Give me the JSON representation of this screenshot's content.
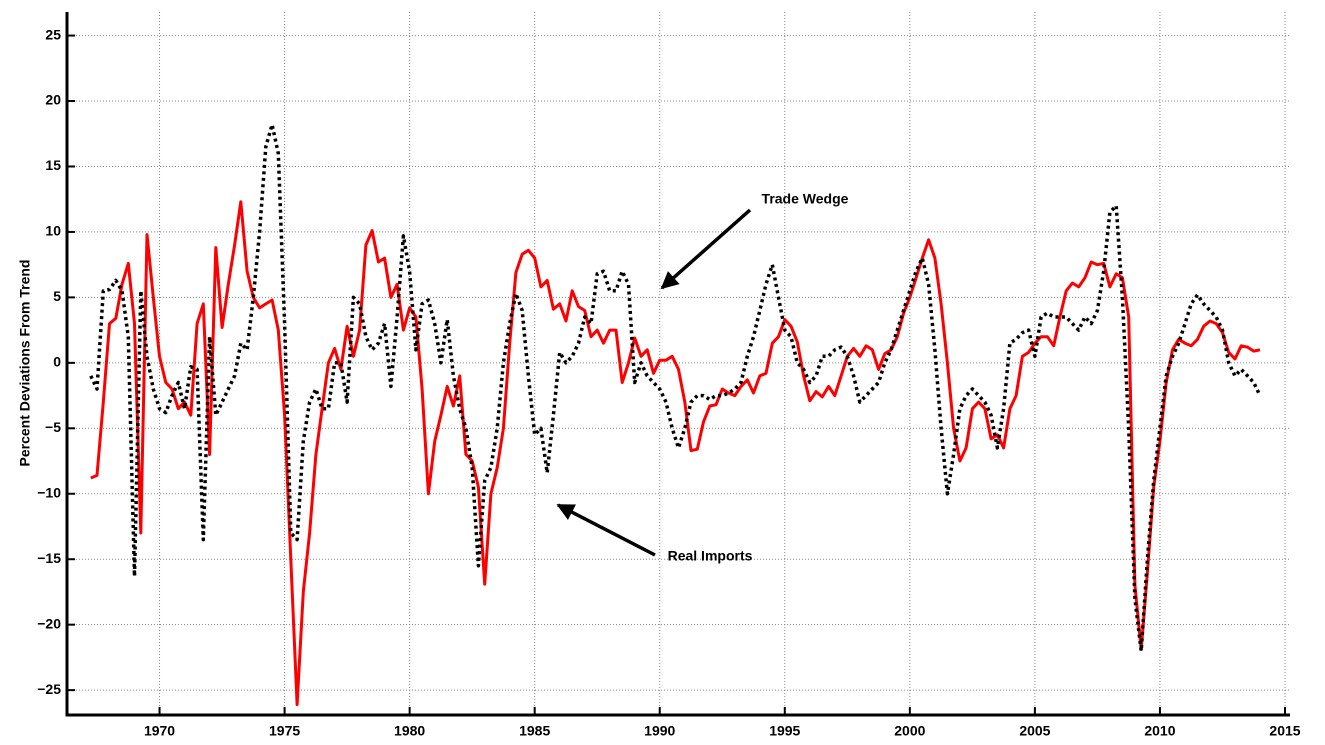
{
  "chart_data": {
    "type": "line",
    "ylabel": "Percent Deviations From Trend",
    "x": [
      1967.25,
      1967.5,
      1967.75,
      1968,
      1968.25,
      1968.5,
      1968.75,
      1969,
      1969.25,
      1969.5,
      1969.75,
      1970,
      1970.25,
      1970.5,
      1970.75,
      1971,
      1971.25,
      1971.5,
      1971.75,
      1972,
      1972.25,
      1972.5,
      1972.75,
      1973,
      1973.25,
      1973.5,
      1973.75,
      1974,
      1974.25,
      1974.5,
      1974.75,
      1975,
      1975.25,
      1975.5,
      1975.75,
      1976,
      1976.25,
      1976.5,
      1976.75,
      1977,
      1977.25,
      1977.5,
      1977.75,
      1978,
      1978.25,
      1978.5,
      1978.75,
      1979,
      1979.25,
      1979.5,
      1979.75,
      1980,
      1980.25,
      1980.5,
      1980.75,
      1981,
      1981.25,
      1981.5,
      1981.75,
      1982,
      1982.25,
      1982.5,
      1982.75,
      1983,
      1983.25,
      1983.5,
      1983.75,
      1984,
      1984.25,
      1984.5,
      1984.75,
      1985,
      1985.25,
      1985.5,
      1985.75,
      1986,
      1986.25,
      1986.5,
      1986.75,
      1987,
      1987.25,
      1987.5,
      1987.75,
      1988,
      1988.25,
      1988.5,
      1988.75,
      1989,
      1989.25,
      1989.5,
      1989.75,
      1990,
      1990.25,
      1990.5,
      1990.75,
      1991,
      1991.25,
      1991.5,
      1991.75,
      1992,
      1992.25,
      1992.5,
      1992.75,
      1993,
      1993.25,
      1993.5,
      1993.75,
      1994,
      1994.25,
      1994.5,
      1994.75,
      1995,
      1995.25,
      1995.5,
      1995.75,
      1996,
      1996.25,
      1996.5,
      1996.75,
      1997,
      1997.25,
      1997.5,
      1997.75,
      1998,
      1998.25,
      1998.5,
      1998.75,
      1999,
      1999.25,
      1999.5,
      1999.75,
      2000,
      2000.25,
      2000.5,
      2000.75,
      2001,
      2001.25,
      2001.5,
      2001.75,
      2002,
      2002.25,
      2002.5,
      2002.75,
      2003,
      2003.25,
      2003.5,
      2003.75,
      2004,
      2004.25,
      2004.5,
      2004.75,
      2005,
      2005.25,
      2005.5,
      2005.75,
      2006,
      2006.25,
      2006.5,
      2006.75,
      2007,
      2007.25,
      2007.5,
      2007.75,
      2008,
      2008.25,
      2008.5,
      2008.75,
      2009,
      2009.25,
      2009.5,
      2009.75,
      2010,
      2010.25,
      2010.5,
      2010.75,
      2011,
      2011.25,
      2011.5,
      2011.75,
      2012,
      2012.25,
      2012.5,
      2012.75,
      2013,
      2013.25,
      2013.5,
      2013.75,
      2014
    ],
    "series": [
      {
        "name": "Real Imports",
        "color": "#ff0000",
        "line_style": "solid",
        "values": [
          -8.8,
          -8.6,
          -3,
          3,
          3.4,
          6,
          7.6,
          3,
          -13,
          9.8,
          5,
          0.5,
          -1.5,
          -2,
          -3.5,
          -3,
          -4,
          3,
          4.5,
          -7,
          8.8,
          2.7,
          6,
          9,
          12.3,
          7,
          5,
          4.2,
          4.5,
          4.8,
          2.5,
          -4,
          -15,
          -26.1,
          -17.5,
          -13,
          -7,
          -3.5,
          0,
          1.1,
          -0.5,
          2.8,
          0.5,
          2.5,
          9,
          10.1,
          7.7,
          8,
          5,
          6,
          2.5,
          4.2,
          3.5,
          -2,
          -10,
          -6,
          -4,
          -1.8,
          -3.3,
          -1,
          -7,
          -7.5,
          -9.5,
          -16.9,
          -10,
          -8,
          -5,
          1.5,
          6.9,
          8.3,
          8.6,
          8,
          5.8,
          6.3,
          4.1,
          4.5,
          3.2,
          5.5,
          4.3,
          4,
          2,
          2.5,
          1.5,
          2.5,
          2.5,
          -1.5,
          0,
          1.9,
          0.5,
          1,
          -0.8,
          0.2,
          0.2,
          0.5,
          -0.5,
          -3,
          -6.7,
          -6.6,
          -4.5,
          -3.3,
          -3.2,
          -2,
          -2.3,
          -2.5,
          -1.8,
          -1.3,
          -2.3,
          -1,
          -0.8,
          1.5,
          2,
          3.3,
          2.8,
          1.6,
          -1,
          -2.9,
          -2.2,
          -2.6,
          -1.8,
          -2.5,
          -1,
          0.5,
          1.1,
          0.5,
          1.3,
          1,
          -0.5,
          0.7,
          1,
          2,
          3.8,
          5,
          6.5,
          8,
          9.4,
          8,
          4.5,
          0,
          -5,
          -7.5,
          -6.5,
          -3.5,
          -3,
          -3.5,
          -5.8,
          -5.5,
          -6.5,
          -3.5,
          -2.5,
          0.5,
          0.8,
          1.5,
          2,
          2,
          1.3,
          3.5,
          5.5,
          6.1,
          5.8,
          6.5,
          7.7,
          7.5,
          7.6,
          5.8,
          6.8,
          6.5,
          3.5,
          -17,
          -21.9,
          -16,
          -9.5,
          -6,
          -1.5,
          1,
          1.8,
          1.5,
          1.3,
          1.8,
          2.8,
          3.2,
          3,
          2.3,
          0.8,
          0.3,
          1.3,
          1.2,
          0.9,
          1
        ]
      },
      {
        "name": "Trade Wedge",
        "color": "#000000",
        "line_style": "dotted",
        "values": [
          -1,
          -2,
          5.5,
          5.6,
          6.3,
          5.5,
          2,
          -16.3,
          5.5,
          0.5,
          -2,
          -3.5,
          -3.8,
          -2.5,
          -1.5,
          -3.5,
          -0.3,
          -0.5,
          -13.5,
          2,
          -4,
          -3,
          -2,
          -1,
          1.5,
          1,
          5,
          10,
          16.5,
          18.2,
          16,
          3,
          -13,
          -13.5,
          -6,
          -3,
          -2,
          -3.5,
          -3.5,
          0,
          0,
          -3,
          5,
          4.5,
          2,
          1,
          1.5,
          3,
          -1.8,
          3.5,
          9.7,
          7,
          1,
          4.5,
          4.8,
          3,
          0,
          3.3,
          -1,
          -3.5,
          -5,
          -8,
          -15.5,
          -9,
          -8,
          -5,
          0,
          3,
          5.3,
          4,
          -1,
          -5.5,
          -5,
          -8.4,
          -4,
          0.8,
          0,
          0.5,
          1.5,
          3.5,
          3,
          6.8,
          7,
          5.5,
          5.5,
          7,
          6,
          -1.5,
          0,
          -1,
          -1.5,
          -2,
          -3,
          -5,
          -6.5,
          -5,
          -3,
          -2.5,
          -2.5,
          -2.8,
          -2.5,
          -2.5,
          -2.3,
          -2,
          -1.5,
          0.5,
          2,
          4,
          6,
          7.5,
          5,
          2.5,
          2,
          0,
          -0.5,
          -1.5,
          -1,
          0.5,
          0.5,
          1,
          1.2,
          0.5,
          -1,
          -3,
          -2.5,
          -2,
          -1.5,
          0,
          1,
          2.5,
          4,
          5.5,
          7,
          8,
          6,
          1,
          -5,
          -10,
          -7,
          -3.5,
          -2.5,
          -2,
          -2.5,
          -3,
          -4,
          -6.5,
          -3.5,
          1.5,
          1.8,
          2.3,
          2.5,
          0.5,
          3.5,
          3.8,
          3.5,
          3.5,
          3.5,
          3,
          2.5,
          3.5,
          3,
          4,
          7,
          11.5,
          12,
          5,
          -5,
          -18,
          -22,
          -15,
          -9,
          -5,
          -1,
          0.5,
          1.5,
          3,
          4.5,
          5.2,
          4.5,
          4,
          3.5,
          2.5,
          0,
          -1,
          -0.5,
          -1,
          -1.5,
          -2.5
        ]
      }
    ],
    "xlim": [
      1966.3,
      2015.2
    ],
    "xticks": [
      1970,
      1975,
      1980,
      1985,
      1990,
      1995,
      2000,
      2005,
      2010,
      2015
    ],
    "ylim": [
      -26.9,
      26.8
    ],
    "yticks": [
      {
        "value": -25,
        "label": "−25"
      },
      {
        "value": -20,
        "label": "−20"
      },
      {
        "value": -15,
        "label": "−15"
      },
      {
        "value": -10,
        "label": "−10"
      },
      {
        "value": -5,
        "label": "−5"
      },
      0,
      5,
      10,
      15,
      20,
      25
    ],
    "grid": true
  }
}
